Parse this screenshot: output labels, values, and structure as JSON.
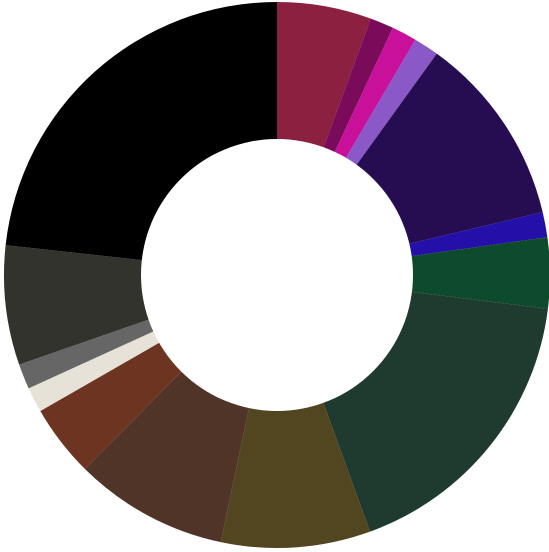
{
  "chart_data": {
    "type": "pie",
    "variant": "donut",
    "start_angle_deg": 0,
    "direction": "clockwise",
    "legend": "none",
    "labels_shown": false,
    "slices": [
      {
        "value": 6.0,
        "color": "#8b2040"
      },
      {
        "value": 1.5,
        "color": "#7a0a5a"
      },
      {
        "value": 1.6,
        "color": "#c8109a"
      },
      {
        "value": 1.6,
        "color": "#8b58c8"
      },
      {
        "value": 12.2,
        "color": "#260d52"
      },
      {
        "value": 1.6,
        "color": "#2410a8"
      },
      {
        "value": 4.5,
        "color": "#0e4a2c"
      },
      {
        "value": 18.8,
        "color": "#1f3a2e"
      },
      {
        "value": 9.5,
        "color": "#524620"
      },
      {
        "value": 9.8,
        "color": "#503428"
      },
      {
        "value": 4.6,
        "color": "#6e3422"
      },
      {
        "value": 1.6,
        "color": "#e6e2d8"
      },
      {
        "value": 1.6,
        "color": "#666666"
      },
      {
        "value": 7.6,
        "color": "#33332d"
      },
      {
        "value": 25.0,
        "color": "#000000"
      }
    ]
  }
}
